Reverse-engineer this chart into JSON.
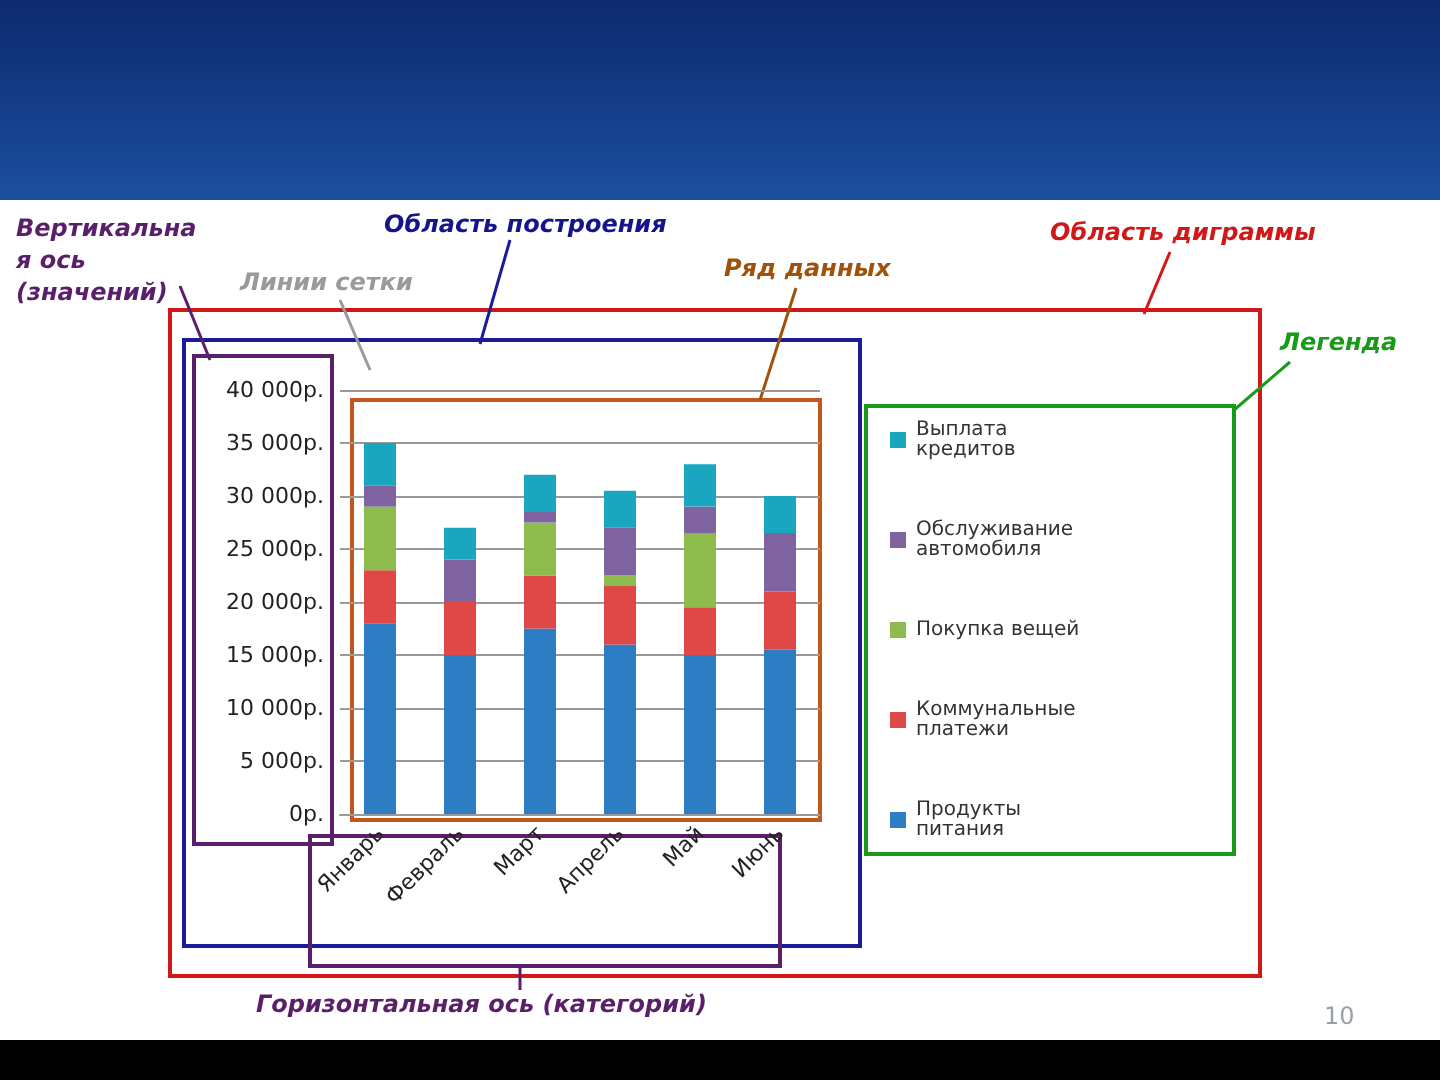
{
  "chart_data": {
    "type": "bar",
    "stacked": true,
    "categories": [
      "Январь",
      "Февраль",
      "Март",
      "Апрель",
      "Май",
      "Июнь"
    ],
    "series": [
      {
        "name": "Продукты питания",
        "color": "#2e7dc4",
        "values": [
          18000,
          15000,
          17500,
          16000,
          15000,
          15500
        ]
      },
      {
        "name": "Коммунальные платежи",
        "color": "#e04848",
        "values": [
          5000,
          5000,
          5000,
          5500,
          4500,
          5500
        ]
      },
      {
        "name": "Покупка вещей",
        "color": "#8dbb4c",
        "values": [
          6000,
          0,
          5000,
          1000,
          7000,
          0
        ]
      },
      {
        "name": "Обслуживание автомобиля",
        "color": "#8064a2",
        "values": [
          2000,
          4000,
          1000,
          4500,
          2500,
          5500
        ]
      },
      {
        "name": "Выплата кредитов",
        "color": "#1ba6c0",
        "values": [
          4000,
          3000,
          3500,
          3500,
          4000,
          3500
        ]
      }
    ],
    "ylim": [
      0,
      40000
    ],
    "yticks": [
      {
        "value": 0,
        "label": "0р."
      },
      {
        "value": 5000,
        "label": "5 000р."
      },
      {
        "value": 10000,
        "label": "10 000р."
      },
      {
        "value": 15000,
        "label": "15 000р."
      },
      {
        "value": 20000,
        "label": "20 000р."
      },
      {
        "value": 25000,
        "label": "25 000р."
      },
      {
        "value": 30000,
        "label": "30 000р."
      },
      {
        "value": 35000,
        "label": "35 000р."
      },
      {
        "value": 40000,
        "label": "40 000р."
      }
    ],
    "grid": "y",
    "legend": "right",
    "annotations": [
      "Вертикальная ось (значений)",
      "Область построения",
      "Линии сетки",
      "Ряд данных",
      "Область диграммы",
      "Легенда",
      "Горизонтальная ось (категорий)",
      "10"
    ]
  }
}
